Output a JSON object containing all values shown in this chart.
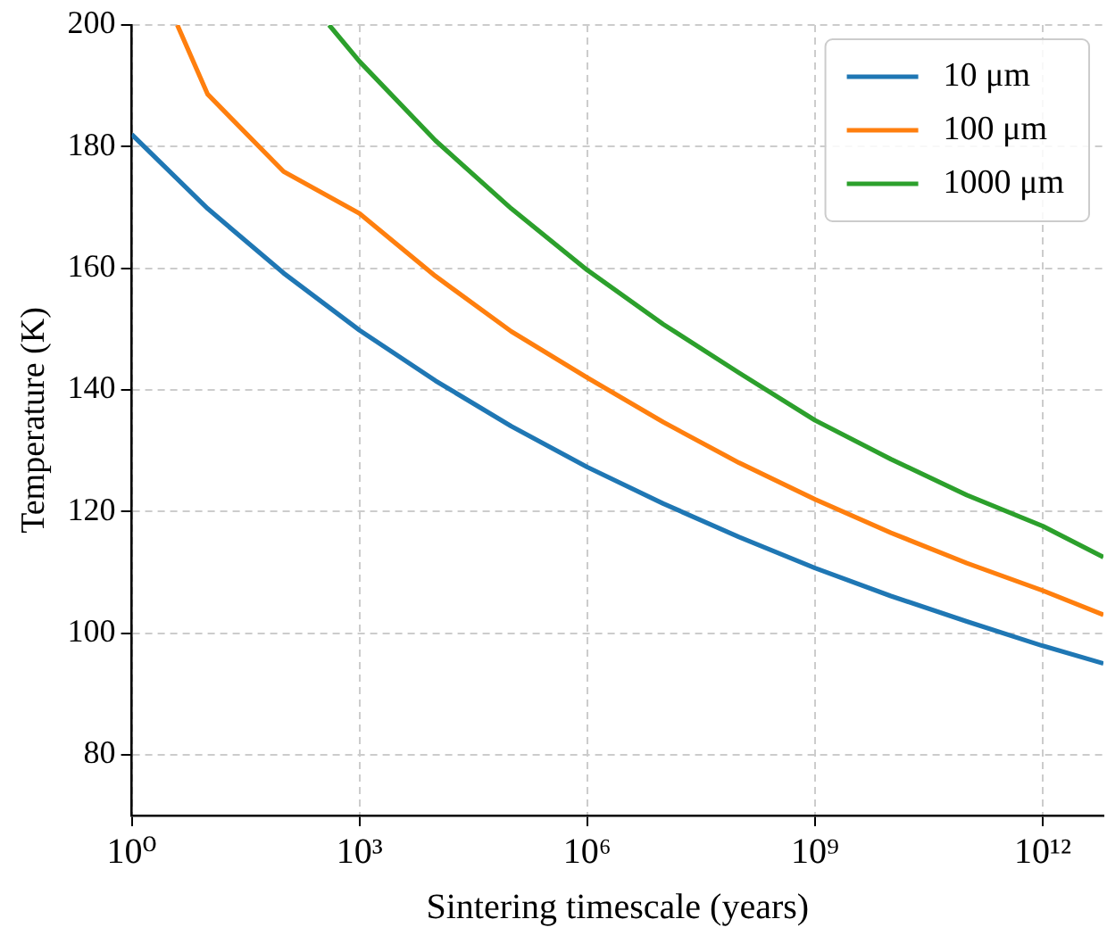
{
  "chart_data": {
    "type": "line",
    "xlabel": "Sintering timescale (years)",
    "ylabel": "Temperature (K)",
    "log": "x",
    "xlim": [
      1,
      6310000000000.0
    ],
    "ylim": [
      70,
      200
    ],
    "xticks": [
      {
        "value": 1,
        "label": "10⁰"
      },
      {
        "value": 1000,
        "label": "10³"
      },
      {
        "value": 1000000,
        "label": "10⁶"
      },
      {
        "value": 1000000000,
        "label": "10⁹"
      },
      {
        "value": 1000000000000,
        "label": "10¹²"
      }
    ],
    "yticks": [
      80,
      100,
      120,
      140,
      160,
      180,
      200
    ],
    "grid": true,
    "legend": "top right",
    "marker": "none",
    "line_style": "solid",
    "series": [
      {
        "name": "10 μm",
        "color": "#1f77b4",
        "x": [
          1,
          10,
          100,
          1000,
          10000,
          100000,
          1000000,
          10000000,
          100000000,
          1000000000,
          10000000000,
          100000000000,
          1000000000000,
          6310000000000
        ],
        "values": [
          182,
          169.8,
          159.2,
          149.8,
          141.5,
          134,
          127.3,
          121.3,
          115.8,
          110.7,
          106.1,
          101.9,
          97.9,
          95
        ]
      },
      {
        "name": "100 μm",
        "color": "#ff7f0e",
        "x": [
          3.98,
          10,
          100,
          1000,
          10000,
          100000,
          1000000,
          10000000,
          100000000,
          1000000000,
          10000000000,
          100000000000,
          1000000000000,
          6310000000000
        ],
        "values": [
          200,
          188.6,
          175.9,
          169,
          158.7,
          149.6,
          142,
          134.7,
          128,
          122,
          116.5,
          111.5,
          107,
          103
        ]
      },
      {
        "name": "1000 μm",
        "color": "#2ca02c",
        "x": [
          398,
          1000,
          10000,
          100000,
          1000000,
          10000000,
          100000000,
          1000000000,
          10000000000,
          100000000000,
          1000000000000,
          6310000000000
        ],
        "values": [
          200,
          194,
          181,
          169.8,
          159.7,
          150.8,
          142.8,
          135,
          128.6,
          122.7,
          117.6,
          112.5
        ]
      }
    ]
  }
}
